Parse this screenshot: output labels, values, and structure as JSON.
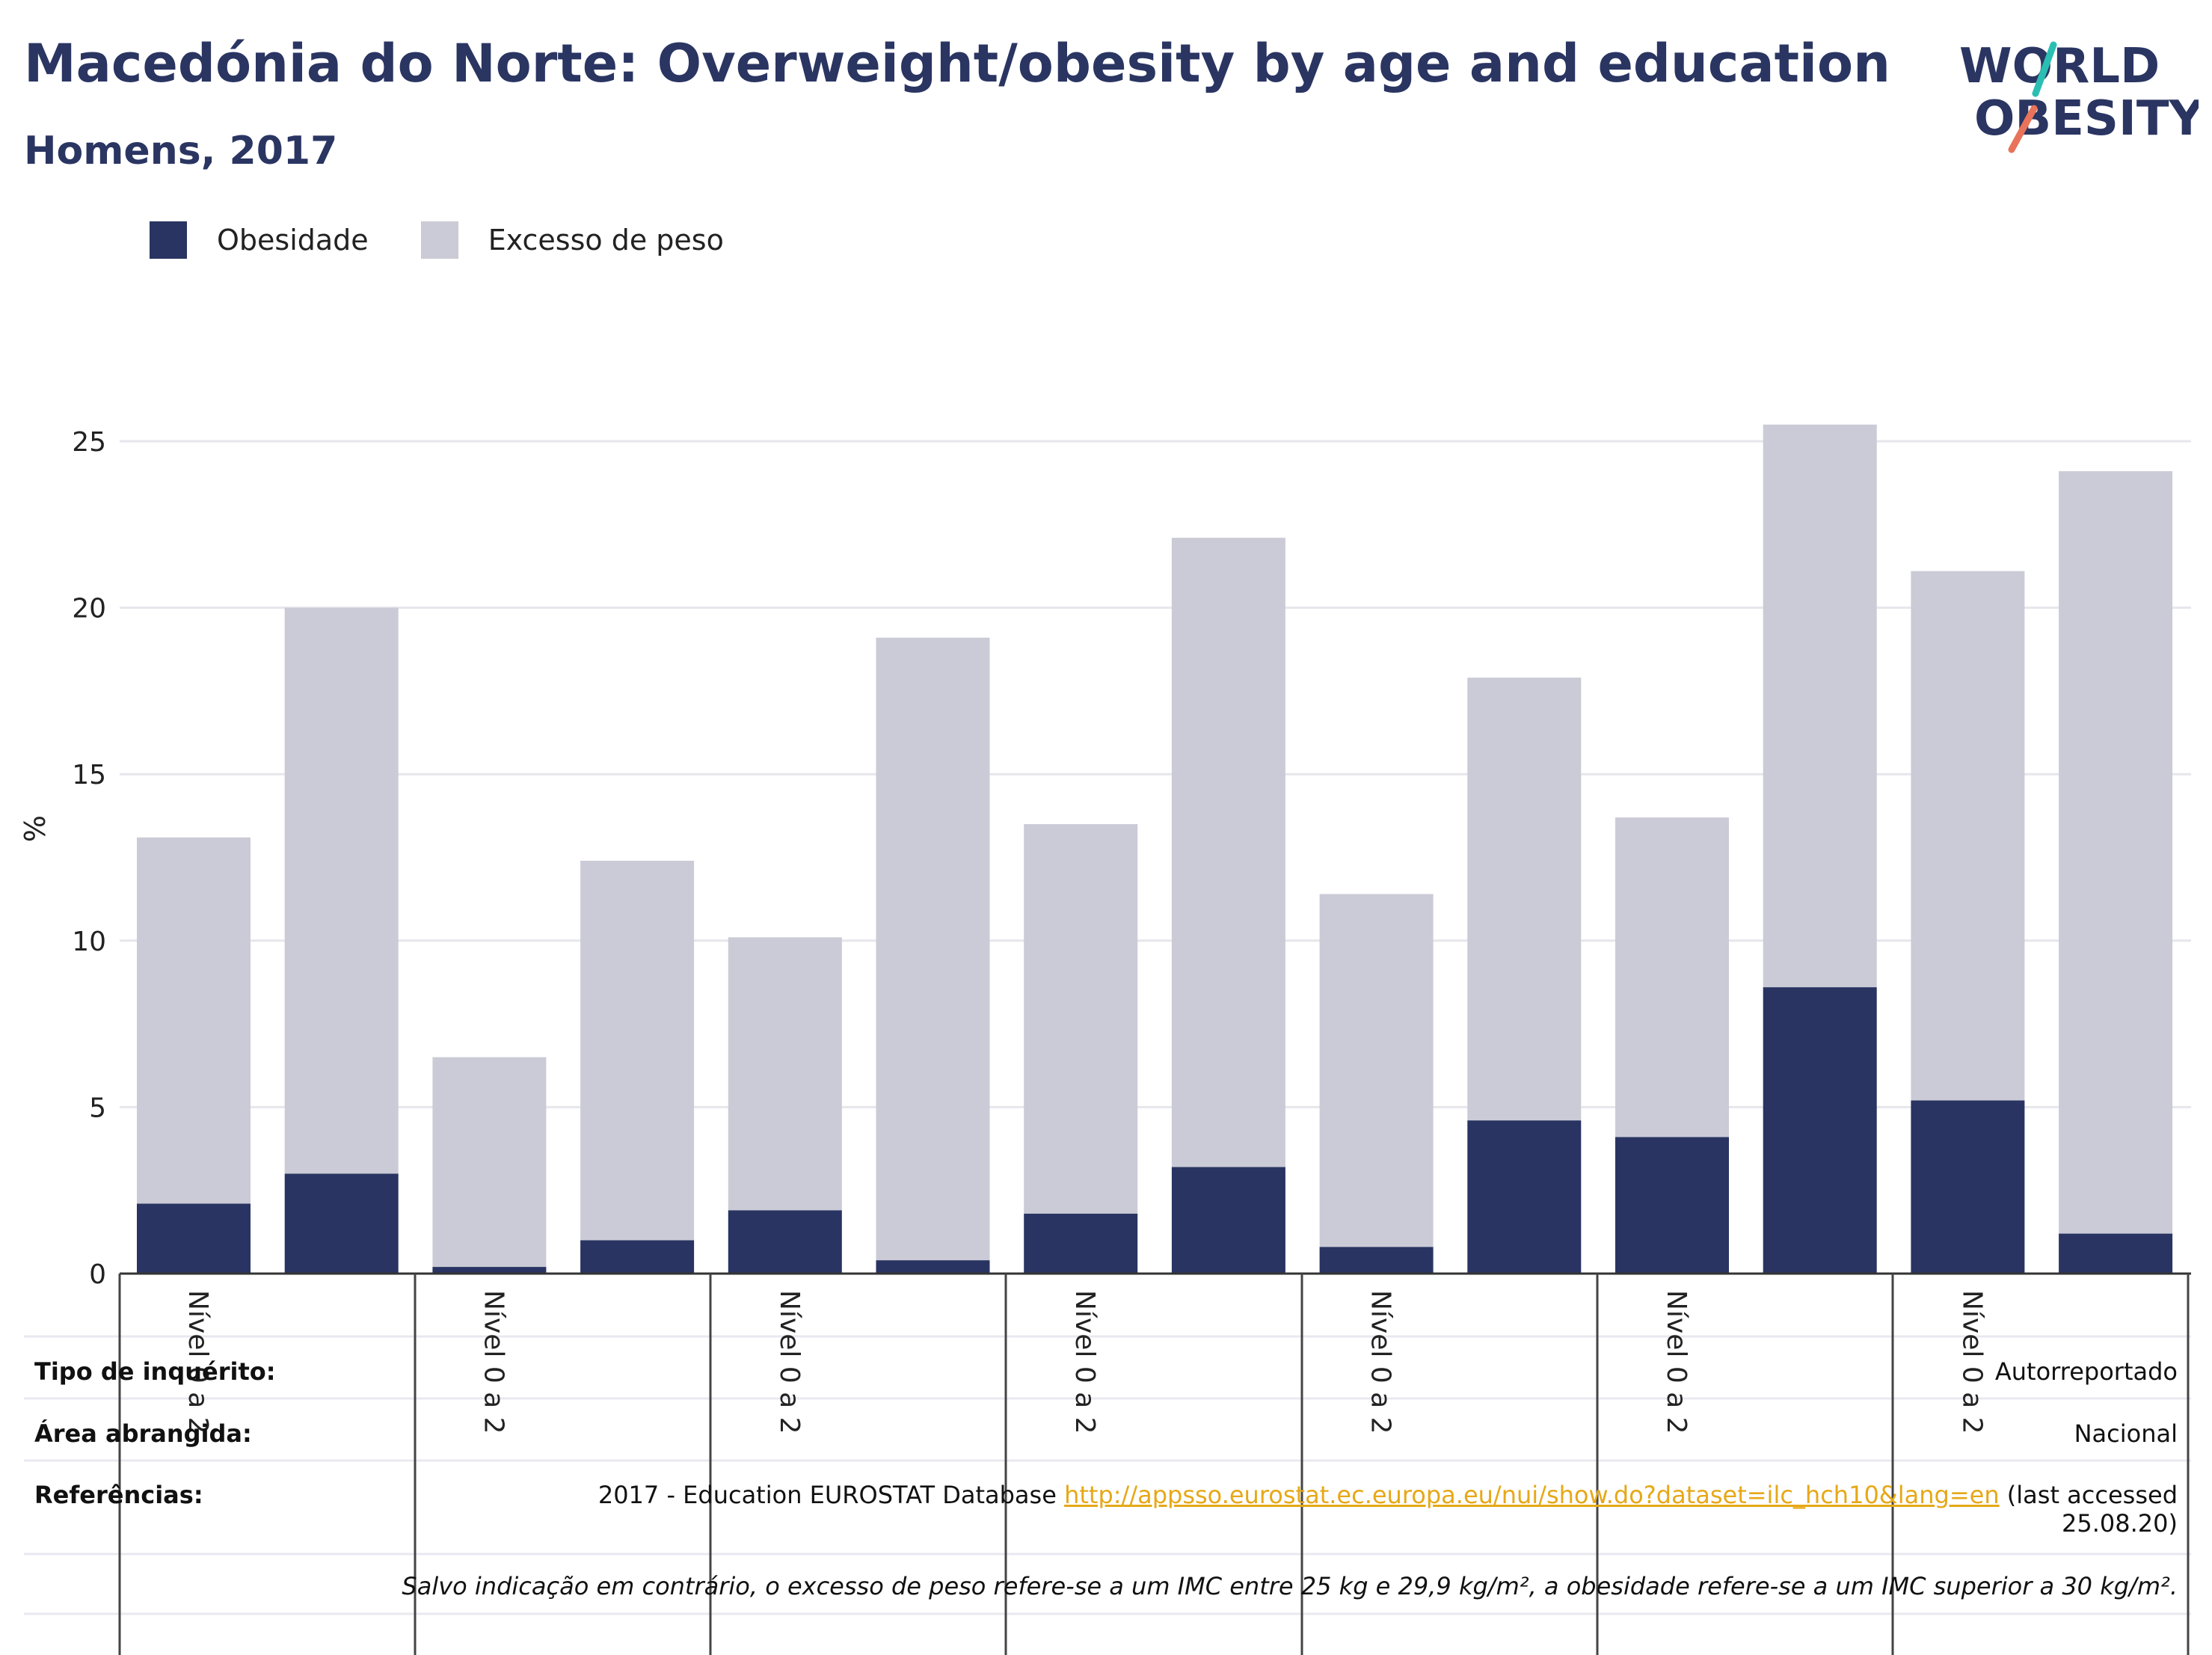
{
  "header": {
    "title": "Macedónia do Norte: Overweight/obesity by age and education",
    "subtitle": "Homens, 2017"
  },
  "logo": {
    "line1": "WORLD",
    "line2": "OBESITY"
  },
  "colors": {
    "obesity": "#293462",
    "overweight": "#cacbd6",
    "title": "#2a3562",
    "link": "#e6a817"
  },
  "chart_data": {
    "type": "bar",
    "stacked": true,
    "ylabel": "%",
    "ylim": [
      0,
      26
    ],
    "yticks": [
      0,
      5,
      10,
      15,
      20,
      25
    ],
    "grid": true,
    "legend_position": "top-left",
    "series": [
      {
        "name": "Obesidade",
        "values": [
          2.1,
          3.0,
          0.2,
          1.0,
          1.9,
          0.4,
          1.8,
          3.2,
          0.8,
          4.6,
          4.1,
          8.6,
          5.2,
          1.2
        ]
      },
      {
        "name": "Excesso de peso",
        "values": [
          11.0,
          17.0,
          6.3,
          11.4,
          8.2,
          18.7,
          11.7,
          18.9,
          10.6,
          13.3,
          9.6,
          16.9,
          15.9,
          22.9
        ]
      }
    ],
    "group_labels": [
      "Nível 0 a 2",
      "Nível 0 a 2",
      "Nível 0 a 2",
      "Nível 0 a 2",
      "Nível 0 a 2",
      "Nível 0 a 2",
      "Nível 0 a 2"
    ]
  },
  "info": {
    "survey_label": "Tipo de inquérito:",
    "survey_value": "Autorreportado",
    "area_label": "Área abrangida:",
    "area_value": "Nacional",
    "refs_label": "Referências:",
    "refs_prefix": "2017 - Education EUROSTAT Database ",
    "refs_link": "http://appsso.eurostat.ec.europa.eu/nui/show.do?dataset=ilc_hch10&lang=en",
    "refs_suffix": " (last accessed",
    "refs_date": "25.08.20)",
    "note": "Salvo indicação em contrário, o excesso de peso refere-se a um IMC entre 25 kg e 29,9 kg/m², a obesidade refere-se a um IMC superior a 30 kg/m²."
  }
}
